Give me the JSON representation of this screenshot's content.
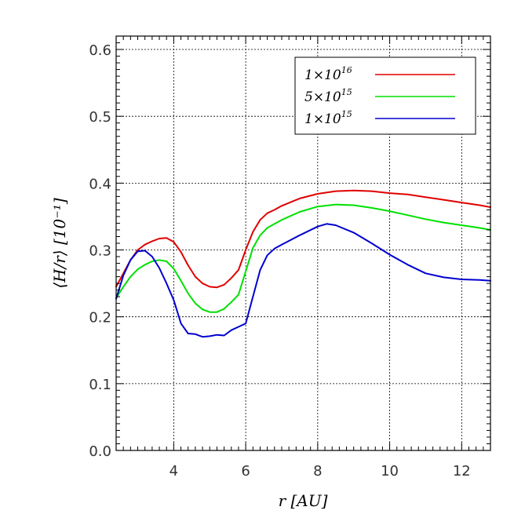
{
  "chart_data": {
    "type": "line",
    "xlabel": "r   [AU]",
    "ylabel": "⟨H/r⟩   [10⁻¹]",
    "xlim": [
      2.4,
      12.8
    ],
    "ylim": [
      0.0,
      0.62
    ],
    "xticks": [
      4,
      6,
      8,
      10,
      12
    ],
    "xtick_labels": [
      "4",
      "6",
      "8",
      "10",
      "12"
    ],
    "yticks": [
      0.0,
      0.1,
      0.2,
      0.3,
      0.4,
      0.5,
      0.6
    ],
    "ytick_labels": [
      "0.0",
      "0.1",
      "0.2",
      "0.3",
      "0.4",
      "0.5",
      "0.6"
    ],
    "grid": true,
    "legend_position": "top-right",
    "series": [
      {
        "name": "1×10¹⁶",
        "label_base": "1×10",
        "label_exp": "16",
        "color": "#e00000",
        "x": [
          2.4,
          2.6,
          2.8,
          3.0,
          3.2,
          3.4,
          3.6,
          3.8,
          4.0,
          4.2,
          4.4,
          4.6,
          4.8,
          5.0,
          5.2,
          5.4,
          5.6,
          5.8,
          6.0,
          6.2,
          6.4,
          6.6,
          6.8,
          7.0,
          7.5,
          8.0,
          8.5,
          9.0,
          9.5,
          10.0,
          10.5,
          11.0,
          11.5,
          12.0,
          12.5,
          12.8
        ],
        "y": [
          0.245,
          0.265,
          0.285,
          0.3,
          0.308,
          0.313,
          0.317,
          0.318,
          0.312,
          0.297,
          0.277,
          0.26,
          0.25,
          0.245,
          0.244,
          0.248,
          0.258,
          0.27,
          0.3,
          0.327,
          0.345,
          0.355,
          0.36,
          0.366,
          0.377,
          0.384,
          0.388,
          0.389,
          0.388,
          0.385,
          0.383,
          0.379,
          0.375,
          0.371,
          0.367,
          0.364
        ]
      },
      {
        "name": "5×10¹⁵",
        "label_base": "5×10",
        "label_exp": "15",
        "color": "#00e000",
        "x": [
          2.4,
          2.6,
          2.8,
          3.0,
          3.2,
          3.4,
          3.6,
          3.8,
          4.0,
          4.2,
          4.4,
          4.6,
          4.8,
          5.0,
          5.2,
          5.4,
          5.6,
          5.8,
          6.0,
          6.2,
          6.4,
          6.6,
          6.8,
          7.0,
          7.5,
          8.0,
          8.5,
          9.0,
          9.5,
          10.0,
          10.5,
          11.0,
          11.5,
          12.0,
          12.5,
          12.8
        ],
        "y": [
          0.228,
          0.245,
          0.26,
          0.271,
          0.278,
          0.283,
          0.285,
          0.283,
          0.272,
          0.254,
          0.235,
          0.22,
          0.211,
          0.207,
          0.207,
          0.212,
          0.222,
          0.233,
          0.268,
          0.303,
          0.322,
          0.333,
          0.339,
          0.345,
          0.357,
          0.365,
          0.368,
          0.367,
          0.363,
          0.358,
          0.352,
          0.346,
          0.341,
          0.337,
          0.333,
          0.33
        ]
      },
      {
        "name": "1×10¹⁵",
        "label_base": "1×10",
        "label_exp": "15",
        "color": "#0000d0",
        "x": [
          2.4,
          2.6,
          2.8,
          3.0,
          3.2,
          3.4,
          3.6,
          3.8,
          4.0,
          4.2,
          4.4,
          4.6,
          4.8,
          5.0,
          5.2,
          5.4,
          5.6,
          5.8,
          6.0,
          6.2,
          6.4,
          6.6,
          6.8,
          7.0,
          7.5,
          8.0,
          8.25,
          8.5,
          9.0,
          9.5,
          10.0,
          10.5,
          11.0,
          11.5,
          12.0,
          12.5,
          12.8
        ],
        "y": [
          0.227,
          0.262,
          0.285,
          0.298,
          0.299,
          0.29,
          0.273,
          0.25,
          0.225,
          0.19,
          0.175,
          0.174,
          0.17,
          0.171,
          0.173,
          0.172,
          0.18,
          0.185,
          0.19,
          0.23,
          0.27,
          0.292,
          0.302,
          0.308,
          0.322,
          0.335,
          0.339,
          0.337,
          0.326,
          0.31,
          0.293,
          0.278,
          0.265,
          0.259,
          0.256,
          0.255,
          0.254
        ]
      }
    ]
  }
}
